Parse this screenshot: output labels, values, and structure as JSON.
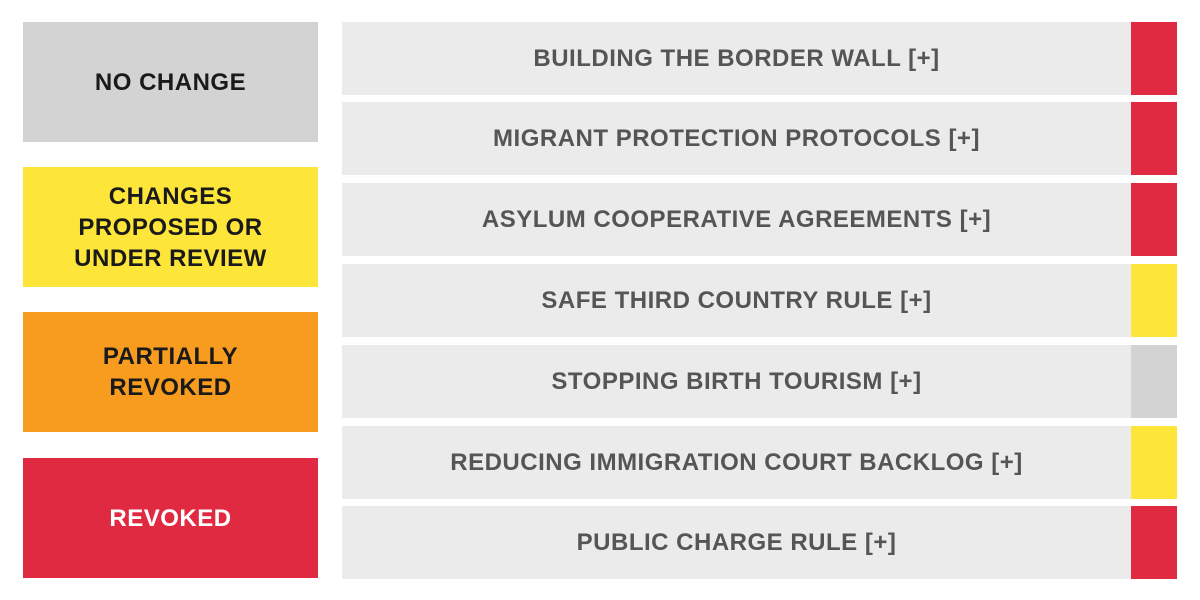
{
  "legend": [
    {
      "label": "NO CHANGE",
      "color": "#d3d3d3"
    },
    {
      "label": "CHANGES\nPROPOSED OR\nUNDER REVIEW",
      "color": "#fde53a"
    },
    {
      "label": "PARTIALLY\nREVOKED",
      "color": "#f89c1f"
    },
    {
      "label": "REVOKED",
      "color": "#e02a41"
    }
  ],
  "rows": [
    {
      "label": "BUILDING THE BORDER WALL [+]",
      "color": "#e02a41"
    },
    {
      "label": "MIGRANT PROTECTION PROTOCOLS [+]",
      "color": "#e02a41"
    },
    {
      "label": "ASYLUM COOPERATIVE AGREEMENTS [+]",
      "color": "#e02a41"
    },
    {
      "label": "SAFE THIRD COUNTRY RULE [+]",
      "color": "#fde53a"
    },
    {
      "label": "STOPPING BIRTH TOURISM [+]",
      "color": "#d3d3d3"
    },
    {
      "label": "REDUCING IMMIGRATION COURT BACKLOG [+]",
      "color": "#fde53a"
    },
    {
      "label": "PUBLIC CHARGE RULE [+]",
      "color": "#e02a41"
    }
  ]
}
